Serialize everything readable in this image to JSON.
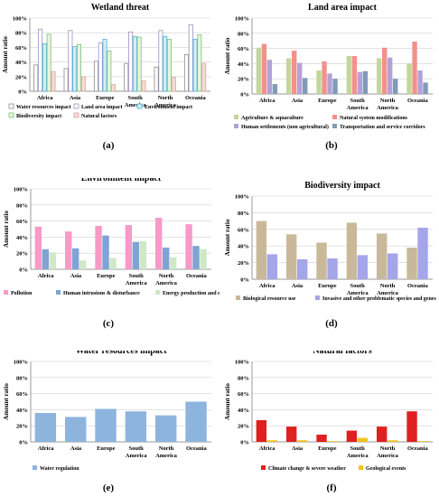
{
  "captions": [
    "(a)",
    "(b)",
    "(c)",
    "(d)",
    "(e)",
    "(f)"
  ],
  "chart_data": [
    {
      "type": "bar",
      "title": "Wetland threat",
      "ylabel": "Amount ratio",
      "categories": [
        "Africa",
        "Asia",
        "Europe",
        "South\nAmerica",
        "North\nAmerica",
        "Oceania"
      ],
      "ylim": [
        0,
        100
      ],
      "yticks": [
        "0%",
        "20%",
        "40%",
        "60%",
        "80%",
        "100%"
      ],
      "grid": true,
      "legend": "bottom",
      "series": [
        {
          "name": "Water resources impact",
          "color": "#ffffff",
          "stroke": "#8a8a8a",
          "values": [
            36,
            31,
            41,
            38,
            33,
            50
          ]
        },
        {
          "name": "Land area impact",
          "color": "#ffffff",
          "stroke": "#9c8fc2",
          "values": [
            85,
            83,
            66,
            81,
            83,
            91
          ]
        },
        {
          "name": "Environment impact",
          "color": "#cdeefa",
          "stroke": "#4fb2d8",
          "values": [
            65,
            61,
            71,
            75,
            75,
            71
          ]
        },
        {
          "name": "Biodiversity impact",
          "color": "#e8f5dc",
          "stroke": "#7cc37c",
          "values": [
            78,
            64,
            55,
            74,
            71,
            77
          ]
        },
        {
          "name": "Natural factors",
          "color": "#f6dbd6",
          "stroke": "#d6a49c",
          "values": [
            27,
            20,
            9,
            14,
            19,
            38
          ]
        }
      ]
    },
    {
      "type": "bar",
      "title": "Land area impact",
      "ylabel": "Amount ratio",
      "categories": [
        "Africa",
        "Asia",
        "Europe",
        "South\nAmerica",
        "North\nAmerica",
        "Oceania"
      ],
      "ylim": [
        0,
        100
      ],
      "yticks": [
        "0%",
        "20%",
        "40%",
        "60%",
        "80%",
        "100%"
      ],
      "grid": true,
      "legend": "bottom",
      "series": [
        {
          "name": "Agriculture & aquaculture",
          "color": "#c3d69b",
          "values": [
            61,
            47,
            31,
            50,
            47,
            40
          ]
        },
        {
          "name": "Natural system modifications",
          "color": "#f2918a",
          "values": [
            66,
            57,
            43,
            50,
            61,
            69
          ]
        },
        {
          "name": "Human settlements (non agricultural)",
          "color": "#b3a2d6",
          "values": [
            45,
            41,
            27,
            29,
            48,
            31
          ]
        },
        {
          "name": "Transportation and service corridors",
          "color": "#7f9bb8",
          "values": [
            13,
            21,
            20,
            30,
            20,
            15
          ]
        }
      ]
    },
    {
      "type": "bar",
      "title": "Environment impact",
      "ylabel": "Amount ratio",
      "categories": [
        "Africa",
        "Asia",
        "Europe",
        "South\nAmerica",
        "North\nAmerica",
        "Oceania"
      ],
      "ylim": [
        0,
        100
      ],
      "yticks": [
        "0%",
        "20%",
        "40%",
        "60%",
        "80%",
        "100%"
      ],
      "grid": true,
      "legend": "bottom",
      "series": [
        {
          "name": "Pollution",
          "color": "#f79ac8",
          "values": [
            53,
            47,
            54,
            55,
            64,
            56
          ]
        },
        {
          "name": "Human intrusions & disturbance",
          "color": "#7ea3d4",
          "values": [
            25,
            26,
            42,
            34,
            27,
            29
          ]
        },
        {
          "name": "Energy production and mining",
          "color": "#cfe8c8",
          "values": [
            21,
            11,
            14,
            35,
            15,
            25
          ]
        }
      ]
    },
    {
      "type": "bar",
      "title": "Biodiversity impact",
      "ylabel": "Amount ratio",
      "categories": [
        "Africa",
        "Asia",
        "Europe",
        "South\nAmerica",
        "North\nAmerica",
        "Oceania"
      ],
      "ylim": [
        0,
        100
      ],
      "yticks": [
        "0%",
        "20%",
        "40%",
        "60%",
        "80%",
        "100%"
      ],
      "grid": true,
      "legend": "bottom",
      "series": [
        {
          "name": "Biological resource use",
          "color": "#c9b99a",
          "values": [
            70,
            54,
            44,
            68,
            55,
            38
          ]
        },
        {
          "name": "Invasive and other problematic species and genes",
          "color": "#a5a5ea",
          "values": [
            30,
            24,
            25,
            29,
            31,
            62
          ]
        }
      ]
    },
    {
      "type": "bar",
      "title": "Water resources impact",
      "ylabel": "Amount ratio",
      "categories": [
        "Africa",
        "Asia",
        "Europe",
        "South\nAmerica",
        "North\nAmerica",
        "Oceania"
      ],
      "ylim": [
        0,
        100
      ],
      "yticks": [
        "0%",
        "20%",
        "40%",
        "60%",
        "80%",
        "100%"
      ],
      "grid": true,
      "legend": "bottom",
      "series": [
        {
          "name": "Water regulation",
          "color": "#8db4dd",
          "values": [
            36,
            31,
            41,
            38,
            33,
            50
          ]
        }
      ]
    },
    {
      "type": "bar",
      "title": "Natural factors",
      "ylabel": "Amount ratio",
      "categories": [
        "Africa",
        "Asia",
        "Europe",
        "South\nAmerica",
        "North\nAmerica",
        "Oceania"
      ],
      "ylim": [
        0,
        100
      ],
      "yticks": [
        "0%",
        "20%",
        "40%",
        "60%",
        "80%",
        "100%"
      ],
      "grid": true,
      "legend": "bottom",
      "series": [
        {
          "name": "Climate change & severe weather",
          "color": "#e02020",
          "values": [
            27,
            19,
            9,
            14,
            19,
            38
          ]
        },
        {
          "name": "Geological events",
          "color": "#f2c21d",
          "values": [
            2,
            2,
            1,
            5,
            2,
            1
          ]
        }
      ]
    }
  ]
}
